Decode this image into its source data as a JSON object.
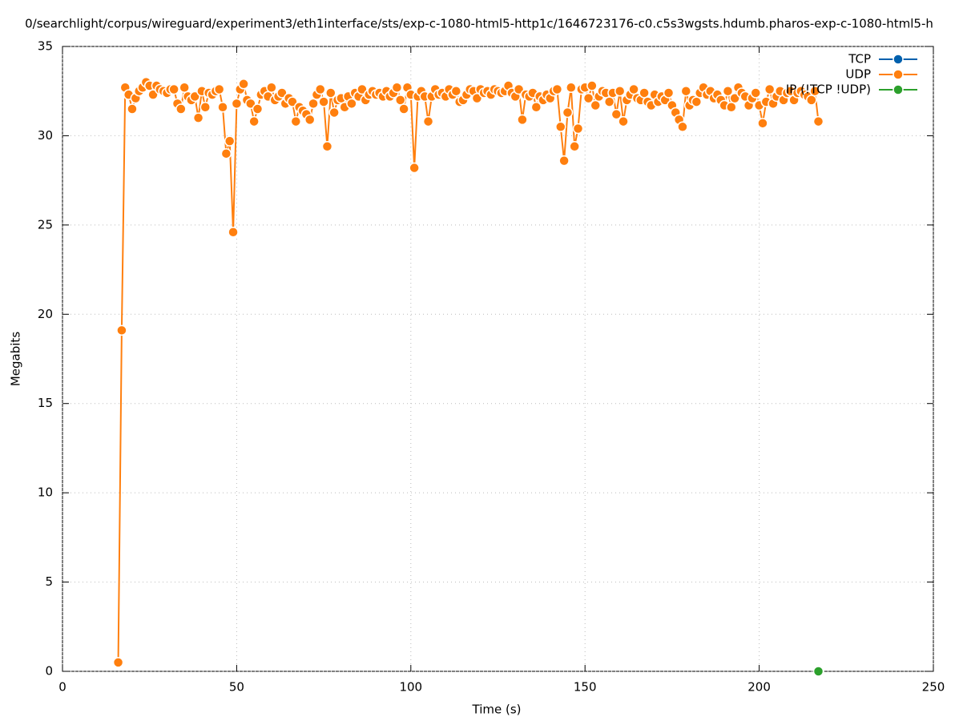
{
  "chart_data": {
    "type": "line",
    "title": "0/searchlight/corpus/wireguard/experiment3/eth1interface/sts/exp-c-1080-html5-http1c/1646723176-c0.c5s3wgsts.hdumb.pharos-exp-c-1080-html5-h",
    "x_label": "Time (s)",
    "y_label": "Megabits",
    "xlim": [
      0,
      250
    ],
    "xticks": [
      0,
      50,
      100,
      150,
      200,
      250
    ],
    "ylim": [
      0,
      35
    ],
    "yticks": [
      0,
      5,
      10,
      15,
      20,
      25,
      30,
      35
    ],
    "grid": true,
    "legend": "top-right",
    "series": [
      {
        "name": "TCP",
        "color": "#0060ad",
        "x": [],
        "values": []
      },
      {
        "name": "UDP",
        "color": "#ff7f0e",
        "x": [
          16,
          17,
          18,
          19,
          20,
          21,
          22,
          23,
          24,
          25,
          26,
          27,
          28,
          29,
          30,
          31,
          32,
          33,
          34,
          35,
          36,
          37,
          38,
          39,
          40,
          41,
          42,
          43,
          44,
          45,
          46,
          47,
          48,
          49,
          50,
          51,
          52,
          53,
          54,
          55,
          56,
          57,
          58,
          59,
          60,
          61,
          62,
          63,
          64,
          65,
          66,
          67,
          68,
          69,
          70,
          71,
          72,
          73,
          74,
          75,
          76,
          77,
          78,
          79,
          80,
          81,
          82,
          83,
          84,
          85,
          86,
          87,
          88,
          89,
          90,
          91,
          92,
          93,
          94,
          95,
          96,
          97,
          98,
          99,
          100,
          101,
          102,
          103,
          104,
          105,
          106,
          107,
          108,
          109,
          110,
          111,
          112,
          113,
          114,
          115,
          116,
          117,
          118,
          119,
          120,
          121,
          122,
          123,
          124,
          125,
          126,
          127,
          128,
          129,
          130,
          131,
          132,
          133,
          134,
          135,
          136,
          137,
          138,
          139,
          140,
          141,
          142,
          143,
          144,
          145,
          146,
          147,
          148,
          149,
          150,
          151,
          152,
          153,
          154,
          155,
          156,
          157,
          158,
          159,
          160,
          161,
          162,
          163,
          164,
          165,
          166,
          167,
          168,
          169,
          170,
          171,
          172,
          173,
          174,
          175,
          176,
          177,
          178,
          179,
          180,
          181,
          182,
          183,
          184,
          185,
          186,
          187,
          188,
          189,
          190,
          191,
          192,
          193,
          194,
          195,
          196,
          197,
          198,
          199,
          200,
          201,
          202,
          203,
          204,
          205,
          206,
          207,
          208,
          209,
          210,
          211,
          212,
          213,
          214,
          215,
          216,
          217
        ],
        "values": [
          0.5,
          19.1,
          32.7,
          32.3,
          31.5,
          32.1,
          32.5,
          32.7,
          33.0,
          32.8,
          32.3,
          32.8,
          32.6,
          32.5,
          32.4,
          32.6,
          32.6,
          31.8,
          31.5,
          32.7,
          32.2,
          32.0,
          32.2,
          31.0,
          32.5,
          31.6,
          32.4,
          32.3,
          32.5,
          32.6,
          31.6,
          29.0,
          29.7,
          24.6,
          31.8,
          32.6,
          32.9,
          32.0,
          31.8,
          30.8,
          31.5,
          32.3,
          32.5,
          32.2,
          32.7,
          32.0,
          32.2,
          32.4,
          31.8,
          32.1,
          31.9,
          30.8,
          31.6,
          31.4,
          31.2,
          30.9,
          31.8,
          32.3,
          32.6,
          31.9,
          29.4,
          32.4,
          31.3,
          32.0,
          32.1,
          31.6,
          32.2,
          31.8,
          32.4,
          32.2,
          32.6,
          32.0,
          32.3,
          32.5,
          32.3,
          32.4,
          32.2,
          32.5,
          32.2,
          32.4,
          32.7,
          32.0,
          31.5,
          32.7,
          32.3,
          28.2,
          32.2,
          32.5,
          32.2,
          30.8,
          32.2,
          32.6,
          32.3,
          32.4,
          32.2,
          32.6,
          32.3,
          32.5,
          31.9,
          32.0,
          32.3,
          32.6,
          32.5,
          32.1,
          32.6,
          32.4,
          32.5,
          32.3,
          32.6,
          32.5,
          32.4,
          32.5,
          32.8,
          32.4,
          32.2,
          32.6,
          30.9,
          32.3,
          32.2,
          32.4,
          31.6,
          32.2,
          32.0,
          32.3,
          32.1,
          32.5,
          32.6,
          30.5,
          28.6,
          31.3,
          32.7,
          29.4,
          30.4,
          32.6,
          32.7,
          32.1,
          32.8,
          31.7,
          32.2,
          32.5,
          32.4,
          31.9,
          32.4,
          31.2,
          32.5,
          30.8,
          32.0,
          32.3,
          32.6,
          32.1,
          32.0,
          32.4,
          31.9,
          31.7,
          32.3,
          31.9,
          32.2,
          32.0,
          32.4,
          31.7,
          31.3,
          30.9,
          30.5,
          32.5,
          31.7,
          32.0,
          31.9,
          32.4,
          32.7,
          32.3,
          32.5,
          32.1,
          32.3,
          32.0,
          31.7,
          32.5,
          31.6,
          32.1,
          32.7,
          32.4,
          32.2,
          31.7,
          32.1,
          32.4,
          31.7,
          30.7,
          31.9,
          32.6,
          31.8,
          32.2,
          32.5,
          32.0,
          32.4,
          32.5,
          32.0,
          32.4,
          32.5,
          32.3,
          32.2,
          32.0,
          32.5,
          30.8
        ]
      },
      {
        "name": "IP (!TCP  !UDP)",
        "color": "#2ca02c",
        "x": [
          217
        ],
        "values": [
          0
        ]
      }
    ]
  }
}
